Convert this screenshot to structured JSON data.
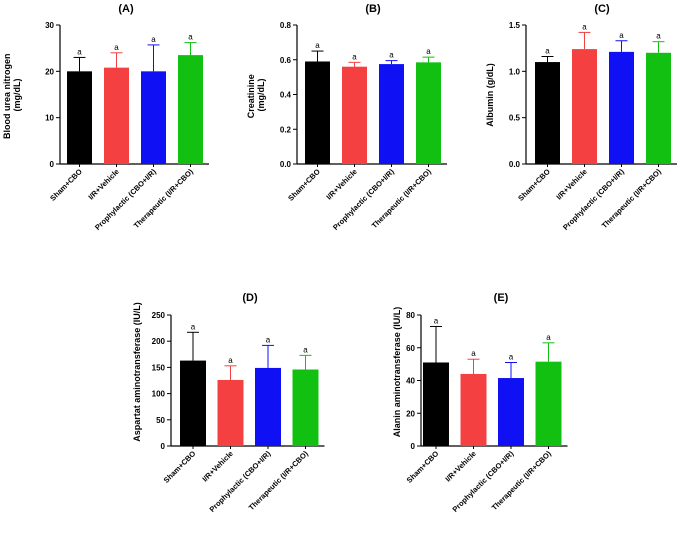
{
  "figure": {
    "domain": "Chart"
  },
  "chart_data": [
    {
      "id": "A",
      "type": "bar",
      "title": "(A)",
      "ylabel": "Blood urea nitrogen (mg/dL)",
      "ylabel_lines": [
        "Blood urea nitrogen",
        "(mg/dL)"
      ],
      "xlabel": "",
      "ylim": [
        0,
        30
      ],
      "yticks": [
        0,
        10,
        20,
        30
      ],
      "ytick_labels": [
        "0",
        "10",
        "20",
        "30"
      ],
      "categories": [
        "Sham+CBO",
        "I/R+Vehicle",
        "Prophylactic (CBO+I/R)",
        "Therapeutic (I/R+CBO)"
      ],
      "values": [
        20,
        20.8,
        20,
        23.5
      ],
      "errors": [
        3,
        3.2,
        5.7,
        2.7
      ],
      "significance": [
        "a",
        "a",
        "a",
        "a"
      ],
      "colors": [
        "#000000",
        "#f44040",
        "#1010f5",
        "#12c012"
      ]
    },
    {
      "id": "B",
      "type": "bar",
      "title": "(B)",
      "ylabel": "Creatinine (mg/dL)",
      "ylabel_lines": [
        "Creatinine",
        "(mg/dL)"
      ],
      "xlabel": "",
      "ylim": [
        0,
        0.8
      ],
      "yticks": [
        0,
        0.2,
        0.4,
        0.6,
        0.8
      ],
      "ytick_labels": [
        "0.0",
        "0.2",
        "0.4",
        "0.6",
        "0.8"
      ],
      "categories": [
        "Sham+CBO",
        "I/R+Vehicle",
        "Prophylactic (CBO+I/R)",
        "Therapeutic (I/R+CBO)"
      ],
      "values": [
        0.59,
        0.56,
        0.575,
        0.585
      ],
      "errors": [
        0.06,
        0.025,
        0.02,
        0.03
      ],
      "significance": [
        "a",
        "a",
        "a",
        "a"
      ],
      "colors": [
        "#000000",
        "#f44040",
        "#1010f5",
        "#12c012"
      ]
    },
    {
      "id": "C",
      "type": "bar",
      "title": "(C)",
      "ylabel": "Albumin (g/dL)",
      "ylabel_lines": [
        "Albumin (g/dL)"
      ],
      "xlabel": "",
      "ylim": [
        0,
        1.5
      ],
      "yticks": [
        0,
        0.5,
        1.0,
        1.5
      ],
      "ytick_labels": [
        "0.0",
        "0.5",
        "1.0",
        "1.5"
      ],
      "categories": [
        "Sham+CBO",
        "I/R+Vehicle",
        "Prophylactic (CBO+I/R)",
        "Therapeutic (I/R+CBO)"
      ],
      "values": [
        1.1,
        1.24,
        1.21,
        1.2
      ],
      "errors": [
        0.06,
        0.18,
        0.12,
        0.12
      ],
      "significance": [
        "a",
        "a",
        "a",
        "a"
      ],
      "colors": [
        "#000000",
        "#f44040",
        "#1010f5",
        "#12c012"
      ]
    },
    {
      "id": "D",
      "type": "bar",
      "title": "(D)",
      "ylabel": "Aspartat aminotransferase (IU/L)",
      "ylabel_lines": [
        "Aspartat aminotransferase (IU/L)"
      ],
      "xlabel": "",
      "ylim": [
        0,
        250
      ],
      "yticks": [
        0,
        50,
        100,
        150,
        200,
        250
      ],
      "ytick_labels": [
        "0",
        "50",
        "100",
        "150",
        "200",
        "250"
      ],
      "categories": [
        "Sham+CBO",
        "I/R+Vehicle",
        "Prophylactic (CBO+I/R)",
        "Therapeutic (I/R+CBO)"
      ],
      "values": [
        163,
        126,
        149,
        146
      ],
      "errors": [
        54,
        27,
        43,
        27
      ],
      "significance": [
        "a",
        "a",
        "a",
        "a"
      ],
      "colors": [
        "#000000",
        "#f44040",
        "#1010f5",
        "#12c012"
      ]
    },
    {
      "id": "E",
      "type": "bar",
      "title": "(E)",
      "ylabel": "Alanin aminotransferase (IU/L)",
      "ylabel_lines": [
        "Alanin aminotransferase (IU/L)"
      ],
      "xlabel": "",
      "ylim": [
        0,
        80
      ],
      "yticks": [
        0,
        20,
        40,
        60,
        80
      ],
      "ytick_labels": [
        "0",
        "20",
        "40",
        "60",
        "80"
      ],
      "categories": [
        "Sham+CBO",
        "I/R+Vehicle",
        "Prophylactic (CBO+I/R)",
        "Therapeutic (I/R+CBO)"
      ],
      "values": [
        51,
        44,
        41.5,
        51.5
      ],
      "errors": [
        22,
        9,
        9.5,
        11.5
      ],
      "significance": [
        "a",
        "a",
        "a",
        "a"
      ],
      "colors": [
        "#000000",
        "#f44040",
        "#1010f5",
        "#12c012"
      ]
    }
  ]
}
